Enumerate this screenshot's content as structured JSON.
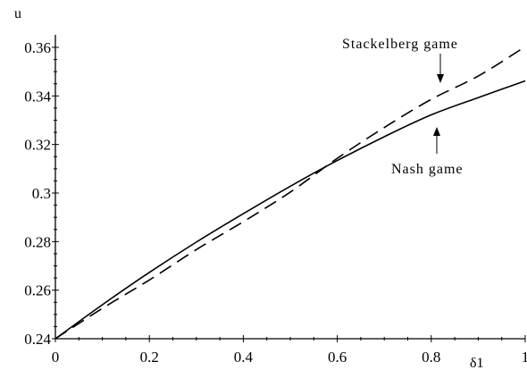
{
  "chart_data": {
    "type": "line",
    "xlabel": "δ1",
    "ylabel": "u",
    "xlim": [
      0,
      1
    ],
    "ylim": [
      0.24,
      0.36
    ],
    "x_ticks": [
      0,
      0.2,
      0.4,
      0.6,
      0.8,
      1
    ],
    "x_tick_labels": [
      "0",
      "0.2",
      "0.4",
      "0.6",
      "0.8",
      "1"
    ],
    "y_ticks": [
      0.24,
      0.26,
      0.28,
      0.3,
      0.32,
      0.34,
      0.36
    ],
    "y_tick_labels": [
      "0.24",
      "0.26",
      "0.28",
      "0.3",
      "0.32",
      "0.34",
      "0.36"
    ],
    "grid": false,
    "legend": "none",
    "series": [
      {
        "name": "Nash game",
        "style": "solid",
        "color": "#000000",
        "x": [
          0,
          0.1,
          0.2,
          0.3,
          0.4,
          0.5,
          0.6,
          0.7,
          0.8,
          0.9,
          1.0
        ],
        "y": [
          0.24,
          0.254,
          0.2673,
          0.2798,
          0.2915,
          0.3028,
          0.3134,
          0.3232,
          0.3322,
          0.3393,
          0.3462
        ]
      },
      {
        "name": "Stackelberg game",
        "style": "dashed",
        "color": "#000000",
        "x": [
          0,
          0.1,
          0.2,
          0.3,
          0.4,
          0.5,
          0.6,
          0.7,
          0.8,
          0.9,
          1.0
        ],
        "y": [
          0.24,
          0.2525,
          0.2642,
          0.2767,
          0.2882,
          0.3004,
          0.3143,
          0.327,
          0.3386,
          0.3482,
          0.3603
        ]
      }
    ],
    "annotations": [
      {
        "text": "Stackelberg game",
        "points_to": "Stackelberg game"
      },
      {
        "text": "Nash game",
        "points_to": "Nash game"
      }
    ]
  }
}
